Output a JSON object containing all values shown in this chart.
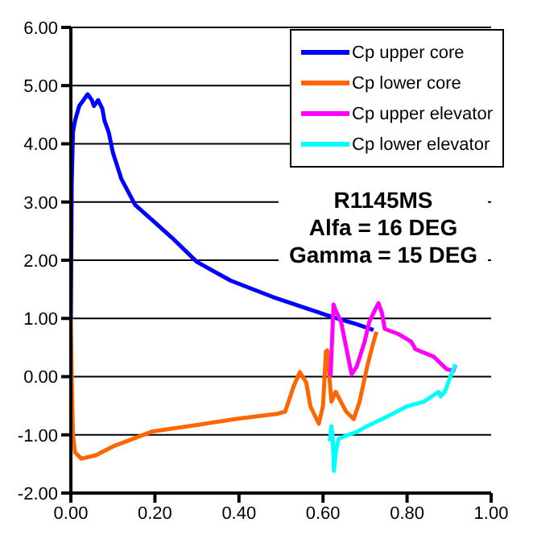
{
  "chart_data": {
    "type": "line",
    "xlim": [
      0,
      1
    ],
    "xticks": [
      {
        "value": 0,
        "label": "0.00"
      },
      {
        "value": 0.2,
        "label": "0.20"
      },
      {
        "value": 0.4,
        "label": "0.40"
      },
      {
        "value": 0.6,
        "label": "0.60"
      },
      {
        "value": 0.8,
        "label": "0.80"
      },
      {
        "value": 1,
        "label": "1.00"
      }
    ],
    "ylim": [
      -2,
      6
    ],
    "yticks": [
      {
        "value": -2,
        "label": "-2.00"
      },
      {
        "value": -1,
        "label": "-1.00"
      },
      {
        "value": 0,
        "label": "0.00"
      },
      {
        "value": 1,
        "label": "1.00"
      },
      {
        "value": 2,
        "label": "2.00"
      },
      {
        "value": 3,
        "label": "3.00"
      },
      {
        "value": 4,
        "label": "4.00"
      },
      {
        "value": 5,
        "label": "5.00"
      },
      {
        "value": 6,
        "label": "6.00"
      }
    ],
    "grid": "y",
    "legend": "top right",
    "marker": "none",
    "line_style": "solid",
    "annotations": [
      "R1145MS",
      "Alfa = 16 DEG",
      "Gamma = 15 DEG"
    ],
    "series": [
      {
        "name": "Cp upper core",
        "color": "#0000ff",
        "x": [
          0,
          0.002,
          0.005,
          0.01,
          0.02,
          0.03,
          0.04,
          0.05,
          0.055,
          0.065,
          0.075,
          0.08,
          0.09,
          0.1,
          0.12,
          0.153,
          0.2,
          0.24,
          0.3,
          0.38,
          0.48,
          0.55,
          0.62,
          0.68,
          0.72
        ],
        "values": [
          1.0,
          3.3,
          4.2,
          4.4,
          4.65,
          4.75,
          4.85,
          4.75,
          4.65,
          4.75,
          4.6,
          4.4,
          4.2,
          3.85,
          3.4,
          2.95,
          2.65,
          2.39,
          1.97,
          1.65,
          1.37,
          1.2,
          1.03,
          0.9,
          0.8
        ]
      },
      {
        "name": "Cp lower core",
        "color": "#ff6600",
        "x": [
          0,
          0.002,
          0.005,
          0.01,
          0.025,
          0.06,
          0.1,
          0.195,
          0.3,
          0.4,
          0.49,
          0.51,
          0.53,
          0.545,
          0.56,
          0.57,
          0.59,
          0.6,
          0.607,
          0.61,
          0.62,
          0.63,
          0.655,
          0.673,
          0.687,
          0.705,
          0.717,
          0.727
        ],
        "values": [
          1.0,
          0.0,
          -1.0,
          -1.3,
          -1.41,
          -1.35,
          -1.2,
          -0.94,
          -0.83,
          -0.72,
          -0.64,
          -0.6,
          -0.17,
          0.08,
          -0.1,
          -0.51,
          -0.81,
          -0.5,
          0.43,
          0.45,
          -0.43,
          -0.26,
          -0.6,
          -0.73,
          -0.43,
          0.17,
          0.51,
          0.77
        ]
      },
      {
        "name": "Cp upper elevator",
        "color": "#ff00ff",
        "x": [
          0.618,
          0.625,
          0.63,
          0.643,
          0.655,
          0.668,
          0.68,
          0.699,
          0.71,
          0.724,
          0.732,
          0.74,
          0.747,
          0.78,
          0.81,
          0.82,
          0.864,
          0.894,
          0.91,
          0.915
        ],
        "values": [
          0.0,
          1.24,
          1.14,
          0.94,
          0.51,
          0.04,
          0.17,
          0.6,
          0.94,
          1.15,
          1.26,
          1.1,
          0.82,
          0.73,
          0.6,
          0.47,
          0.34,
          0.13,
          0.1,
          0.2
        ]
      },
      {
        "name": "Cp lower elevator",
        "color": "#00ffff",
        "x": [
          0.616,
          0.62,
          0.623,
          0.626,
          0.63,
          0.637,
          0.66,
          0.68,
          0.705,
          0.754,
          0.8,
          0.84,
          0.875,
          0.88,
          0.89,
          0.903,
          0.915
        ],
        "values": [
          -1.11,
          -0.85,
          -1.05,
          -1.62,
          -1.3,
          -1.07,
          -1.0,
          -0.95,
          -0.85,
          -0.68,
          -0.51,
          -0.43,
          -0.26,
          -0.34,
          -0.26,
          0.0,
          0.21
        ]
      }
    ]
  }
}
